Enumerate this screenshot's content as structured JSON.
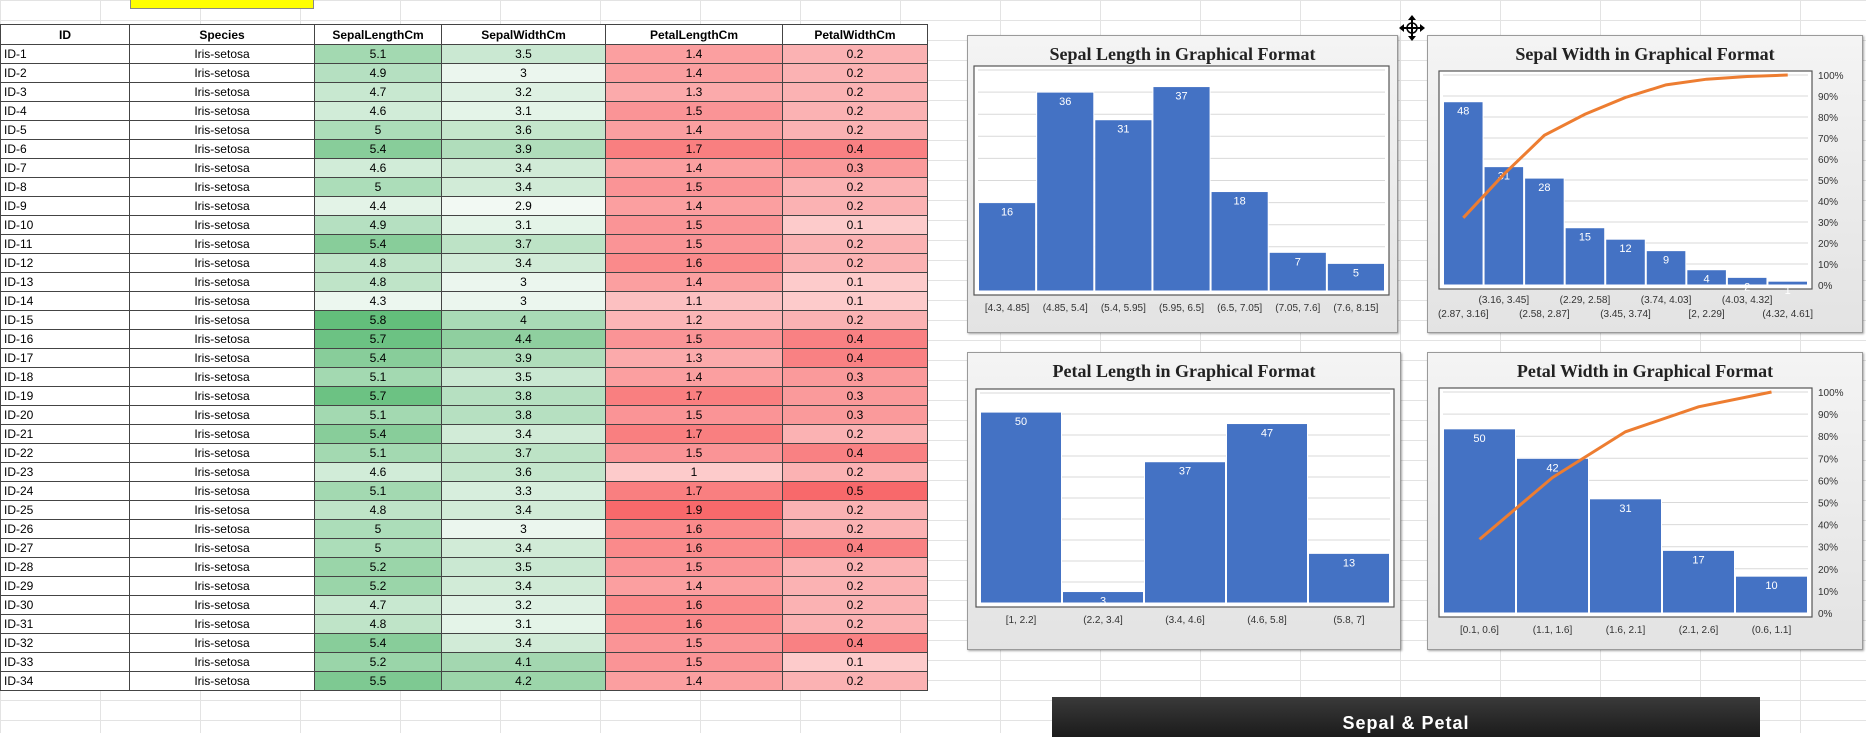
{
  "table": {
    "headers": [
      "ID",
      "Species",
      "SepalLengthCm",
      "SepalWidthCm",
      "PetalLengthCm",
      "PetalWidthCm"
    ],
    "rows": [
      [
        "ID-1",
        "Iris-setosa",
        "5.1",
        "3.5",
        "1.4",
        "0.2"
      ],
      [
        "ID-2",
        "Iris-setosa",
        "4.9",
        "3",
        "1.4",
        "0.2"
      ],
      [
        "ID-3",
        "Iris-setosa",
        "4.7",
        "3.2",
        "1.3",
        "0.2"
      ],
      [
        "ID-4",
        "Iris-setosa",
        "4.6",
        "3.1",
        "1.5",
        "0.2"
      ],
      [
        "ID-5",
        "Iris-setosa",
        "5",
        "3.6",
        "1.4",
        "0.2"
      ],
      [
        "ID-6",
        "Iris-setosa",
        "5.4",
        "3.9",
        "1.7",
        "0.4"
      ],
      [
        "ID-7",
        "Iris-setosa",
        "4.6",
        "3.4",
        "1.4",
        "0.3"
      ],
      [
        "ID-8",
        "Iris-setosa",
        "5",
        "3.4",
        "1.5",
        "0.2"
      ],
      [
        "ID-9",
        "Iris-setosa",
        "4.4",
        "2.9",
        "1.4",
        "0.2"
      ],
      [
        "ID-10",
        "Iris-setosa",
        "4.9",
        "3.1",
        "1.5",
        "0.1"
      ],
      [
        "ID-11",
        "Iris-setosa",
        "5.4",
        "3.7",
        "1.5",
        "0.2"
      ],
      [
        "ID-12",
        "Iris-setosa",
        "4.8",
        "3.4",
        "1.6",
        "0.2"
      ],
      [
        "ID-13",
        "Iris-setosa",
        "4.8",
        "3",
        "1.4",
        "0.1"
      ],
      [
        "ID-14",
        "Iris-setosa",
        "4.3",
        "3",
        "1.1",
        "0.1"
      ],
      [
        "ID-15",
        "Iris-setosa",
        "5.8",
        "4",
        "1.2",
        "0.2"
      ],
      [
        "ID-16",
        "Iris-setosa",
        "5.7",
        "4.4",
        "1.5",
        "0.4"
      ],
      [
        "ID-17",
        "Iris-setosa",
        "5.4",
        "3.9",
        "1.3",
        "0.4"
      ],
      [
        "ID-18",
        "Iris-setosa",
        "5.1",
        "3.5",
        "1.4",
        "0.3"
      ],
      [
        "ID-19",
        "Iris-setosa",
        "5.7",
        "3.8",
        "1.7",
        "0.3"
      ],
      [
        "ID-20",
        "Iris-setosa",
        "5.1",
        "3.8",
        "1.5",
        "0.3"
      ],
      [
        "ID-21",
        "Iris-setosa",
        "5.4",
        "3.4",
        "1.7",
        "0.2"
      ],
      [
        "ID-22",
        "Iris-setosa",
        "5.1",
        "3.7",
        "1.5",
        "0.4"
      ],
      [
        "ID-23",
        "Iris-setosa",
        "4.6",
        "3.6",
        "1",
        "0.2"
      ],
      [
        "ID-24",
        "Iris-setosa",
        "5.1",
        "3.3",
        "1.7",
        "0.5"
      ],
      [
        "ID-25",
        "Iris-setosa",
        "4.8",
        "3.4",
        "1.9",
        "0.2"
      ],
      [
        "ID-26",
        "Iris-setosa",
        "5",
        "3",
        "1.6",
        "0.2"
      ],
      [
        "ID-27",
        "Iris-setosa",
        "5",
        "3.4",
        "1.6",
        "0.4"
      ],
      [
        "ID-28",
        "Iris-setosa",
        "5.2",
        "3.5",
        "1.5",
        "0.2"
      ],
      [
        "ID-29",
        "Iris-setosa",
        "5.2",
        "3.4",
        "1.4",
        "0.2"
      ],
      [
        "ID-30",
        "Iris-setosa",
        "4.7",
        "3.2",
        "1.6",
        "0.2"
      ],
      [
        "ID-31",
        "Iris-setosa",
        "4.8",
        "3.1",
        "1.6",
        "0.2"
      ],
      [
        "ID-32",
        "Iris-setosa",
        "5.4",
        "3.4",
        "1.5",
        "0.4"
      ],
      [
        "ID-33",
        "Iris-setosa",
        "5.2",
        "4.1",
        "1.5",
        "0.1"
      ],
      [
        "ID-34",
        "Iris-setosa",
        "5.5",
        "4.2",
        "1.4",
        "0.2"
      ]
    ]
  },
  "colors": {
    "bar": "#4472c4",
    "pareto_line": "#ed7d31",
    "sepal_length_max": "#63be7b",
    "sepal_width_max": "#8fcf9f",
    "petal_length_max": "#f8696b",
    "petal_width_max": "#f8696b"
  },
  "banner": {
    "label": "Sepal & Petal"
  },
  "chart_data": [
    {
      "type": "bar",
      "title": "Sepal Length in Graphical Format",
      "categories": [
        "[4.3, 4.85]",
        "(4.85, 5.4]",
        "(5.4, 5.95]",
        "(5.95, 6.5]",
        "(6.5, 7.05]",
        "(7.05, 7.6]",
        "(7.6, 8.15]"
      ],
      "values": [
        16,
        36,
        31,
        37,
        18,
        7,
        5
      ],
      "ylim": [
        0,
        40
      ],
      "grid": true
    },
    {
      "type": "bar",
      "title": "Sepal Width in Graphical Format",
      "categories": [
        "(2.87, 3.16]",
        "(3.16, 3.45]",
        "(2.58, 2.87]",
        "(2.29, 2.58]",
        "(3.45, 3.74]",
        "(3.74, 4.03]",
        "[2, 2.29]",
        "(4.03, 4.32]",
        "(4.32, 4.61]"
      ],
      "values": [
        48,
        31,
        28,
        15,
        12,
        9,
        4,
        2,
        1
      ],
      "cumulative_percent": [
        32,
        52.7,
        71.3,
        81.3,
        89.3,
        95.3,
        98,
        99.3,
        100
      ],
      "ylim": [
        0,
        55
      ],
      "y2ticks": [
        "0%",
        "10%",
        "20%",
        "30%",
        "40%",
        "50%",
        "60%",
        "70%",
        "80%",
        "90%",
        "100%"
      ],
      "grid": true
    },
    {
      "type": "bar",
      "title": "Petal Length in Graphical Format",
      "categories": [
        "[1, 2.2]",
        "(2.2, 3.4]",
        "(3.4, 4.6]",
        "(4.6, 5.8]",
        "(5.8, 7]"
      ],
      "values": [
        50,
        3,
        37,
        47,
        13
      ],
      "ylim": [
        0,
        55
      ],
      "grid": true
    },
    {
      "type": "bar",
      "title": "Petal Width in Graphical Format",
      "categories": [
        "[0.1, 0.6]",
        "(1.1, 1.6]",
        "(1.6, 2.1]",
        "(2.1, 2.6]",
        "(0.6, 1.1]"
      ],
      "values": [
        50,
        42,
        31,
        17,
        10
      ],
      "cumulative_percent": [
        33.3,
        61.3,
        82,
        93.3,
        100
      ],
      "ylim": [
        0,
        60
      ],
      "y2ticks": [
        "0%",
        "10%",
        "20%",
        "30%",
        "40%",
        "50%",
        "60%",
        "70%",
        "80%",
        "90%",
        "100%"
      ],
      "grid": true
    }
  ]
}
